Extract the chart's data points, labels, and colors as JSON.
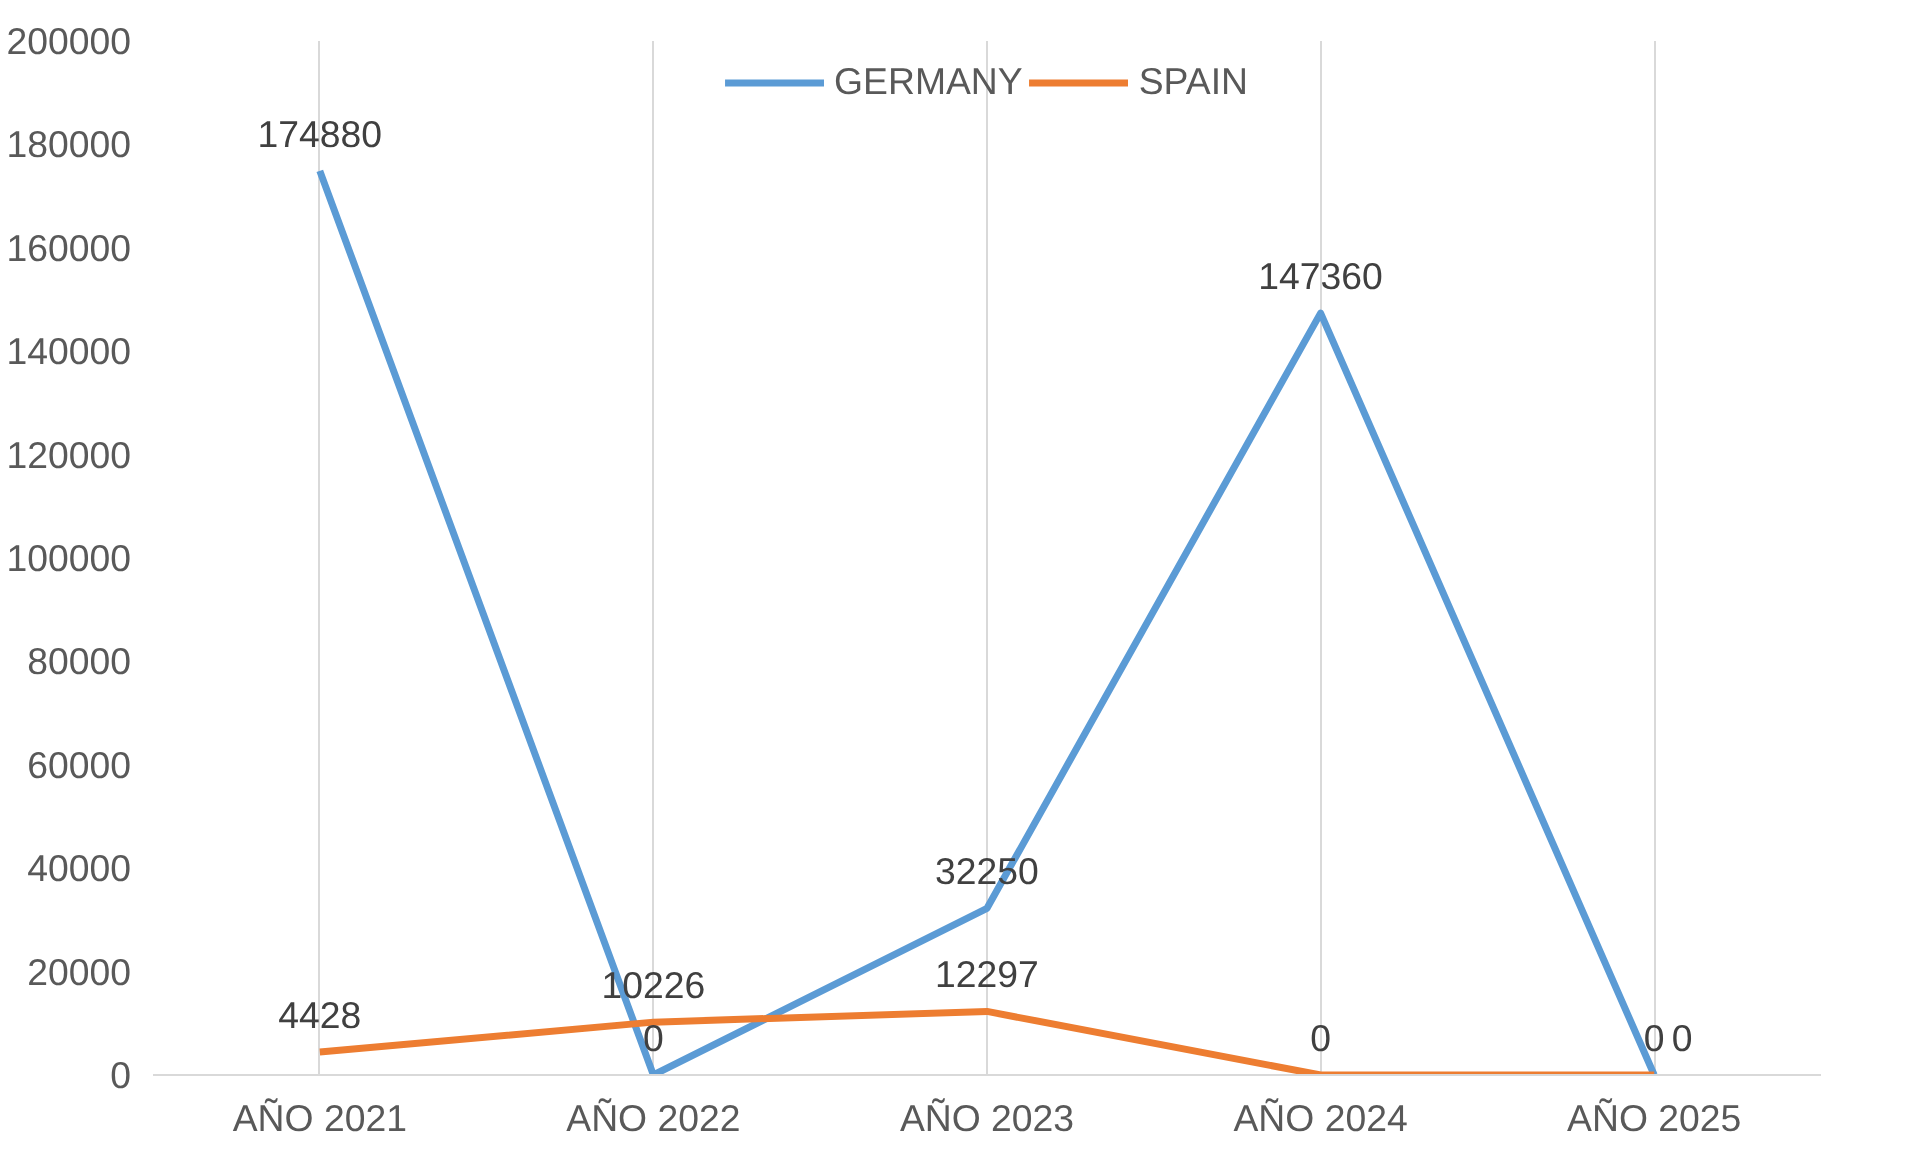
{
  "chart_data": {
    "type": "line",
    "categories": [
      "AÑO 2021",
      "AÑO 2022",
      "AÑO 2023",
      "AÑO 2024",
      "AÑO 2025"
    ],
    "series": [
      {
        "name": "GERMANY",
        "color": "#5b9bd5",
        "values": [
          174880,
          0,
          32250,
          147360,
          0
        ]
      },
      {
        "name": "SPAIN",
        "color": "#ed7d31",
        "values": [
          4428,
          10226,
          12297,
          0,
          0
        ]
      }
    ],
    "ylim": [
      0,
      200000
    ],
    "yticks": [
      0,
      20000,
      40000,
      60000,
      80000,
      100000,
      120000,
      140000,
      160000,
      180000,
      200000
    ],
    "grid": "x",
    "legend": "top",
    "data_labels": true,
    "marker": "none",
    "line_style": "solid"
  }
}
